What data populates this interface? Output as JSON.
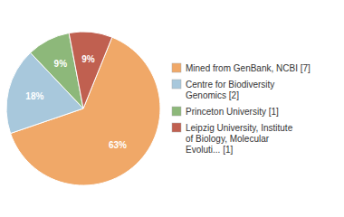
{
  "chart_data": {
    "type": "pie",
    "categories": [
      "Mined from GenBank, NCBI [7]",
      "Centre for Biodiversity\nGenomics [2]",
      "Princeton University [1]",
      "Leipzig University, Institute\nof Biology, Molecular\nEvoluti... [1]"
    ],
    "values": [
      63,
      18,
      9,
      9
    ],
    "value_labels": [
      "63%",
      "18%",
      "9%",
      "9%"
    ],
    "colors": [
      "#f0a868",
      "#a8c8dc",
      "#8db87a",
      "#c06050"
    ],
    "data_labels": true,
    "legend": "right"
  }
}
